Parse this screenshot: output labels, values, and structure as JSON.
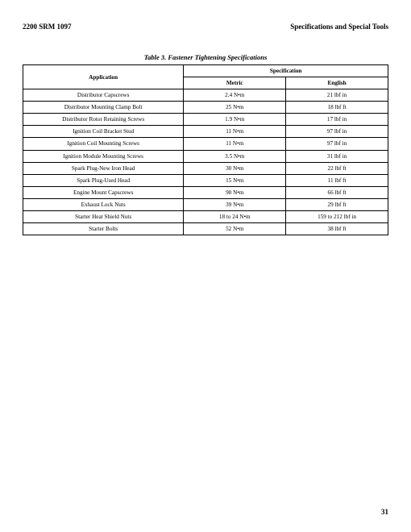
{
  "header": {
    "left": "2200 SRM 1097",
    "right": "Specifications and Special Tools"
  },
  "table": {
    "title": "Table 3. Fastener Tightening Specifications",
    "columns": {
      "app": "Application",
      "spec": "Specification",
      "metric": "Metric",
      "english": "English"
    },
    "rows": [
      {
        "app": "Distributor Capscrews",
        "metric": "2.4 N•m",
        "english": "21 lbf in"
      },
      {
        "app": "Distributor Mounting Clamp Bolt",
        "metric": "25 N•m",
        "english": "18 lbf ft"
      },
      {
        "app": "Distributor Rotor Retaining Screws",
        "metric": "1.9 N•m",
        "english": "17 lbf in"
      },
      {
        "app": "Ignition Coil Bracket Stud",
        "metric": "11 N•m",
        "english": "97 lbf in"
      },
      {
        "app": "Ignition Coil Mounting Screws",
        "metric": "11 N•m",
        "english": "97 lbf in"
      },
      {
        "app": "Ignition Module Mounting Screws",
        "metric": "3.5 N•m",
        "english": "31 lbf in"
      },
      {
        "app": "Spark Plug-New Iron Head",
        "metric": "30 N•m",
        "english": "22 lbf ft"
      },
      {
        "app": "Spark Plug-Used Head",
        "metric": "15 N•m",
        "english": "11 lbf ft"
      },
      {
        "app": "Engine Mount Capscrews",
        "metric": "90 N•m",
        "english": "66 lbf ft"
      },
      {
        "app": "Exhaust Lock Nuts",
        "metric": "39 N•m",
        "english": "29 lbf ft"
      },
      {
        "app": "Starter Heat Shield Nuts",
        "metric": "18 to 24 N•m",
        "english": "159 to 212 lbf in"
      },
      {
        "app": "Starter Bolts",
        "metric": "52 N•m",
        "english": "38 lbf ft"
      }
    ]
  },
  "page_number": "31"
}
